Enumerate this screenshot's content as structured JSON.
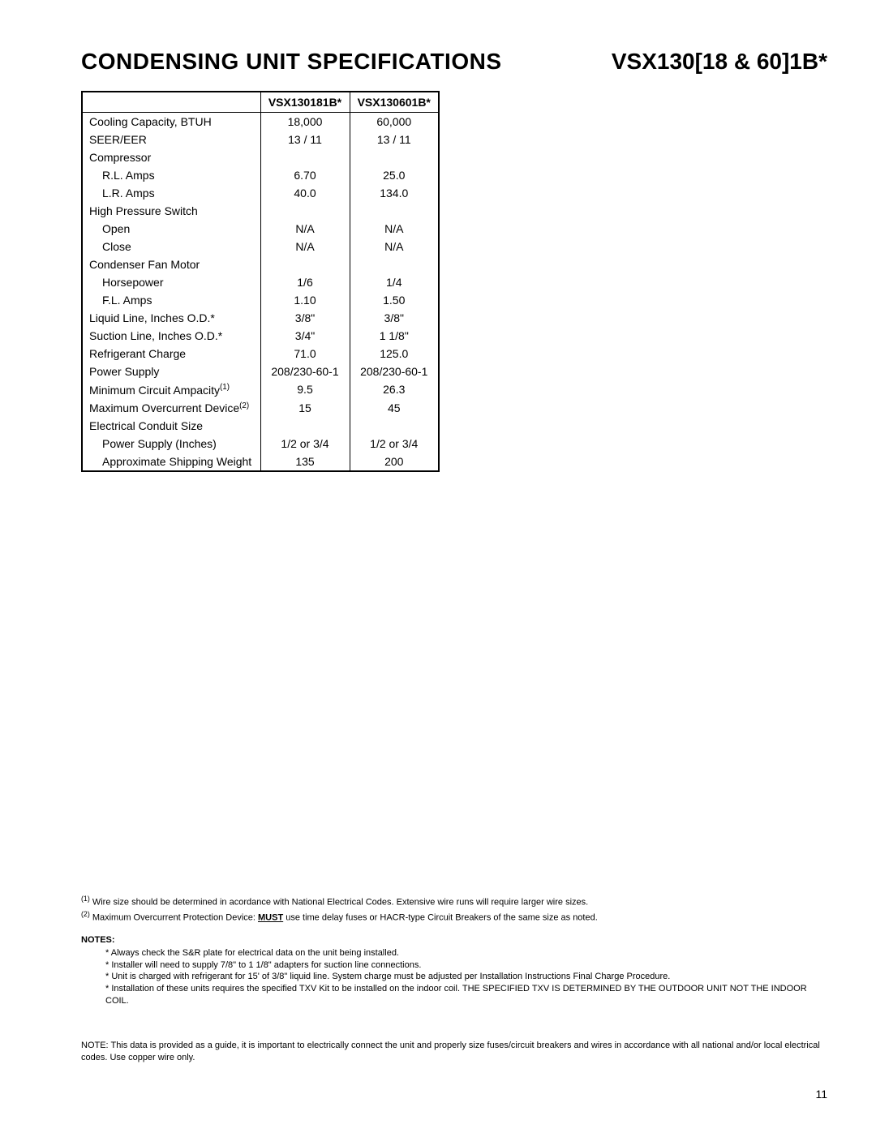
{
  "header": {
    "title_left": "CONDENSING UNIT SPECIFICATIONS",
    "title_right": "VSX130[18 & 60]1B*"
  },
  "table": {
    "columns": [
      "",
      "VSX130181B*",
      "VSX130601B*"
    ],
    "rows": [
      {
        "label": "Cooling Capacity, BTUH",
        "indent": 0,
        "c1": "18,000",
        "c2": "60,000"
      },
      {
        "label": "SEER/EER",
        "indent": 0,
        "c1": "13 / 11",
        "c2": "13 / 11"
      },
      {
        "label": "Compressor",
        "indent": 0,
        "c1": "",
        "c2": ""
      },
      {
        "label": "R.L. Amps",
        "indent": 1,
        "c1": "6.70",
        "c2": "25.0"
      },
      {
        "label": "L.R. Amps",
        "indent": 1,
        "c1": "40.0",
        "c2": "134.0"
      },
      {
        "label": "High Pressure Switch",
        "indent": 0,
        "c1": "",
        "c2": ""
      },
      {
        "label": "Open",
        "indent": 1,
        "c1": "N/A",
        "c2": "N/A"
      },
      {
        "label": "Close",
        "indent": 1,
        "c1": "N/A",
        "c2": "N/A"
      },
      {
        "label": "Condenser Fan Motor",
        "indent": 0,
        "c1": "",
        "c2": ""
      },
      {
        "label": "Horsepower",
        "indent": 1,
        "c1": "1/6",
        "c2": "1/4"
      },
      {
        "label": "F.L. Amps",
        "indent": 1,
        "c1": "1.10",
        "c2": "1.50"
      },
      {
        "label": "Liquid Line, Inches O.D.*",
        "indent": 0,
        "c1": "3/8\"",
        "c2": "3/8\""
      },
      {
        "label": "Suction Line, Inches O.D.*",
        "indent": 0,
        "c1": "3/4\"",
        "c2": "1 1/8\""
      },
      {
        "label": "Refrigerant Charge",
        "indent": 0,
        "c1": "71.0",
        "c2": "125.0"
      },
      {
        "label": "Power Supply",
        "indent": 0,
        "c1": "208/230-60-1",
        "c2": "208/230-60-1"
      },
      {
        "label": "Minimum Circuit Ampacity",
        "sup": "(1)",
        "indent": 0,
        "c1": "9.5",
        "c2": "26.3"
      },
      {
        "label": "Maximum Overcurrent Device",
        "sup": "(2)",
        "indent": 0,
        "c1": "15",
        "c2": "45"
      },
      {
        "label": "Electrical Conduit Size",
        "indent": 0,
        "c1": "",
        "c2": ""
      },
      {
        "label": "Power Supply (Inches)",
        "indent": 1,
        "c1": "1/2 or 3/4",
        "c2": "1/2 or 3/4"
      },
      {
        "label": "Approximate Shipping Weight",
        "indent": 1,
        "c1": "135",
        "c2": "200"
      }
    ]
  },
  "footnotes": {
    "fn1_sup": "(1)",
    "fn1": "Wire size should be determined in acordance with National Electrical Codes. Extensive wire runs will require larger wire sizes.",
    "fn2_sup": "(2)",
    "fn2_pre": "Maximum Overcurrent Protection Device: ",
    "fn2_must": "MUST",
    "fn2_post": " use time delay fuses or HACR-type Circuit Breakers of the same size as noted."
  },
  "notes": {
    "heading": "NOTES:",
    "items": [
      "Always check the S&R plate for electrical data on the unit being installed.",
      "Installer will need to supply 7/8\" to 1 1/8\" adapters for suction line connections.",
      "Unit is charged with refrigerant for 15' of 3/8\" liquid line. System charge must be adjusted per Installation Instructions Final Charge Procedure.",
      "Installation of these units requires the specified TXV Kit to be installed on the indoor coil. THE SPECIFIED TXV IS DETERMINED BY THE OUTDOOR UNIT NOT THE INDOOR COIL."
    ]
  },
  "bottom_note": "NOTE: This data is provided as a guide, it is important to electrically connect the unit and properly size fuses/circuit breakers and wires in accordance with all national and/or local electrical codes. Use copper wire only.",
  "page_number": "11"
}
